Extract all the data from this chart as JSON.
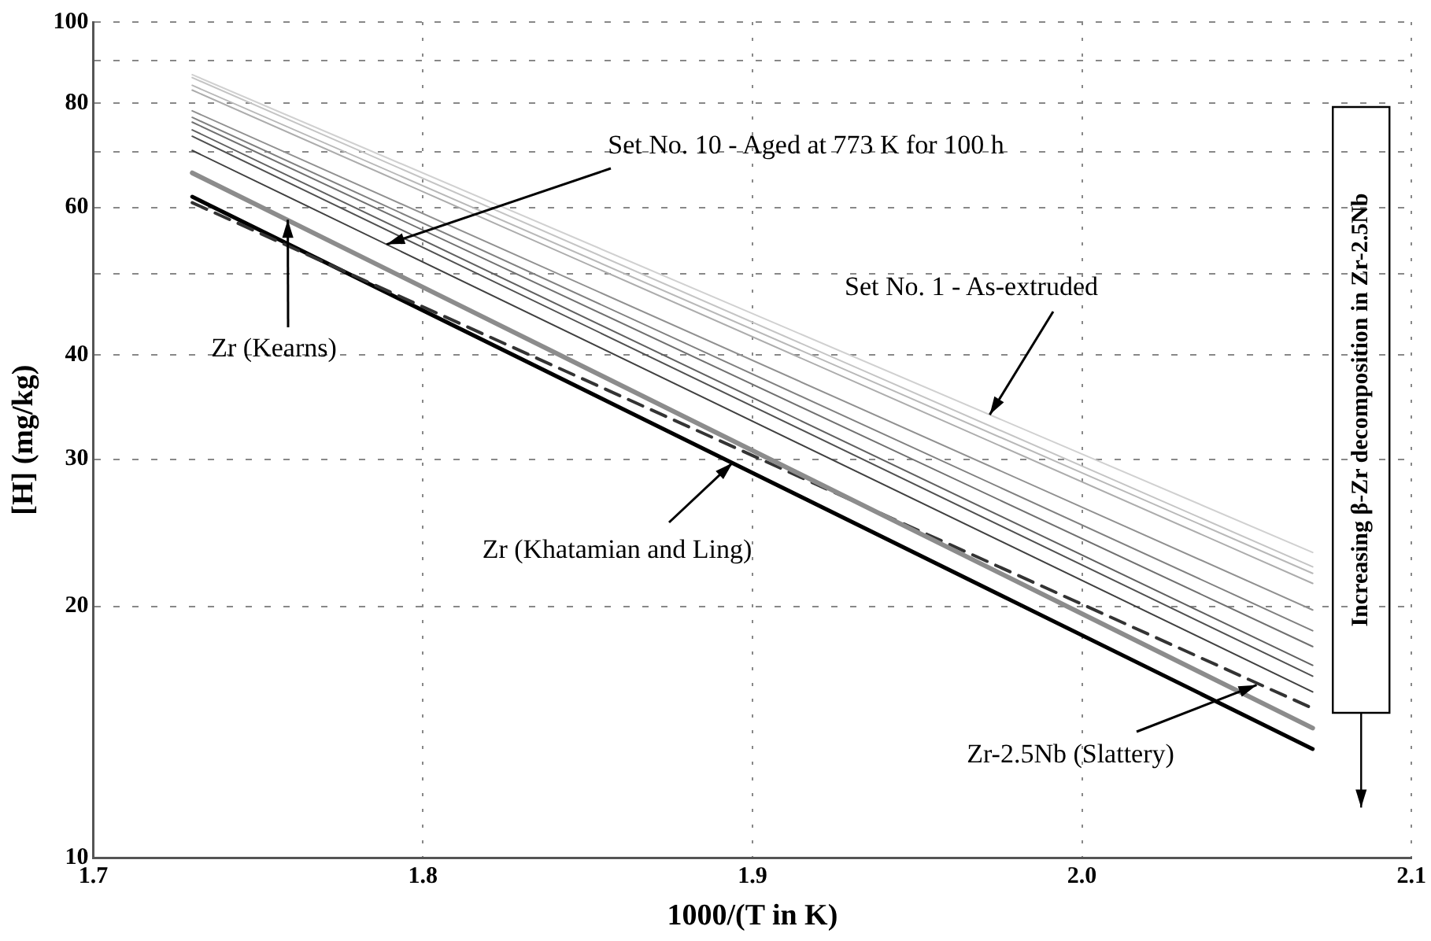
{
  "chart_data": {
    "type": "line",
    "xlabel": "1000/(T in K)",
    "ylabel": "[H] (mg/kg)",
    "x": [
      1.73,
      2.07
    ],
    "series": [
      {
        "color": "#d0d0d0",
        "values": [
          86.5,
          23.2
        ]
      },
      {
        "color": "#c4c4c4",
        "values": [
          85.8,
          22.3
        ]
      },
      {
        "color": "#b8b8b8",
        "values": [
          84.0,
          21.9
        ]
      },
      {
        "color": "#acacac",
        "values": [
          82.9,
          21.3
        ]
      },
      {
        "color": "#909090",
        "values": [
          78.3,
          19.8
        ]
      },
      {
        "color": "#808080",
        "values": [
          76.9,
          18.7
        ]
      },
      {
        "color": "#707070",
        "values": [
          75.9,
          17.9
        ]
      },
      {
        "color": "#606060",
        "values": [
          74.3,
          17.0
        ]
      },
      {
        "color": "#505050",
        "values": [
          73.0,
          16.5
        ]
      },
      {
        "color": "#404040",
        "values": [
          70.2,
          15.8
        ]
      },
      {
        "color": "#8c8c8c",
        "values": [
          66.0,
          14.3
        ]
      },
      {
        "color": "#333333",
        "values": [
          60.8,
          15.1
        ],
        "line_style": "dashed"
      },
      {
        "color": "#000000",
        "values": [
          61.8,
          13.5
        ]
      }
    ],
    "xlim": [
      1.7,
      2.1
    ],
    "xticks": [
      1.7,
      1.8,
      1.9,
      {
        "value": 2,
        "label": "2.0"
      },
      2.1
    ],
    "ylim": [
      10,
      100
    ],
    "log": true,
    "yticks": [
      10,
      20,
      30,
      40,
      {
        "value": 50,
        "label": null
      },
      60,
      {
        "value": 70,
        "label": null
      },
      80,
      {
        "value": 90,
        "label": null
      },
      100
    ],
    "grid": true,
    "legend": false,
    "marker": "none",
    "line_style": "solid",
    "annotations": [
      {
        "text": "Zr (Kearns)",
        "x": 1.759,
        "y": 58
      },
      {
        "text": "Set No. 10 - Aged at 773 K for 100 h",
        "x": 1.789,
        "y": 54.2
      },
      {
        "text": "Set No. 1 - As-extruded",
        "x": 1.972,
        "y": 33.9
      },
      {
        "text": "Zr (Khatamian and Ling)",
        "x": 1.894,
        "y": 29.7
      },
      {
        "text": "Zr-2.5Nb (Slattery)",
        "x": 2.053,
        "y": 16.1
      },
      "Increasing β-Zr decomposition in Zr-2.5Nb"
    ]
  }
}
